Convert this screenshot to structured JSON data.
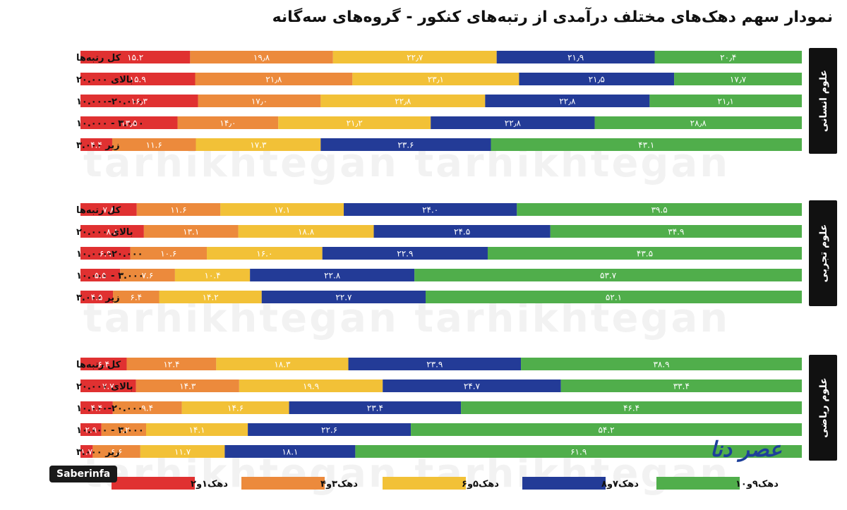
{
  "title": "نمودار سهم دهک‌های مختلف درآمدی از رتبه‌های کنکور - گروه‌های سه‌گانه",
  "watermark": "tarhikhtegan tarhikhtegan",
  "source": "Saberinfa",
  "brand": "عصر دنا",
  "colors": {
    "d1_2": "#e03131",
    "d3_4": "#ec8a3c",
    "d5_6": "#f2c137",
    "d7_8": "#233b97",
    "d9_10": "#50ae4b",
    "group_tab": "#111111"
  },
  "chart_data": {
    "type": "bar",
    "stacked": true,
    "orientation": "horizontal",
    "title": "نمودار سهم دهک‌های مختلف درآمدی از رتبه‌های کنکور - گروه‌های سه‌گانه",
    "xlim": [
      0,
      100
    ],
    "series_names": [
      "دهک۱و۲",
      "دهک۳و۴",
      "دهک۵و۶",
      "دهک۷و۸",
      "دهک۹و۱۰"
    ],
    "series_keys": [
      "d1_2",
      "d3_4",
      "d5_6",
      "d7_8",
      "d9_10"
    ],
    "legend": [
      {
        "key": "d1_2",
        "label": "دهک۱و۲"
      },
      {
        "key": "d3_4",
        "label": "دهک۳و۴"
      },
      {
        "key": "d5_6",
        "label": "دهک۵و۶"
      },
      {
        "key": "d7_8",
        "label": "دهک۷و۸"
      },
      {
        "key": "d9_10",
        "label": "دهک۹و۱۰"
      }
    ],
    "groups": [
      {
        "name": "علوم انسانی",
        "rows": [
          {
            "label": "کل رتبه‌ها",
            "values": [
              15.2,
              19.8,
              22.7,
              21.9,
              20.4
            ],
            "value_labels": [
              "۱۵.۲",
              "۱۹٫۸",
              "۲۲٫۷",
              "۲۱٫۹",
              "۲۰٫۴"
            ]
          },
          {
            "label": "بالای ۲۰.۰۰۰",
            "values": [
              15.9,
              21.8,
              23.1,
              21.5,
              17.7
            ],
            "value_labels": [
              "۱۵.۹",
              "۲۱٫۸",
              "۲۳٫۱",
              "۲۱٫۵",
              "۱۷٫۷"
            ]
          },
          {
            "label": "۱۰.۰۰۰-۲۰.۰۰۰",
            "values": [
              16.3,
              17.0,
              22.8,
              22.8,
              21.1
            ],
            "value_labels": [
              "۱۶٫۳",
              "۱۷٫۰",
              "۲۲٫۸",
              "۲۲٫۸",
              "۲۱٫۱"
            ]
          },
          {
            "label": "۳.۰۰۰ - ۱۰.۰۰۰",
            "values": [
              13.5,
              14.0,
              21.2,
              22.8,
              28.8
            ],
            "value_labels": [
              "۱۳٫۵",
              "۱۴٫۰",
              "۲۱٫۲",
              "۲۲٫۸",
              "۲۸٫۸"
            ]
          },
          {
            "label": "زیر ۳.۰۰۰",
            "values": [
              4.4,
              11.6,
              17.3,
              23.6,
              43.1
            ],
            "value_labels": [
              "۴.۴",
              "۱۱.۶",
              "۱۷.۳",
              "۲۳.۶",
              "۴۳.۱"
            ]
          }
        ]
      },
      {
        "name": "علوم تجربی",
        "rows": [
          {
            "label": "کل رتبه‌ها",
            "values": [
              7.8,
              11.6,
              17.1,
              24.0,
              39.5
            ],
            "value_labels": [
              "۷.۸",
              "۱۱.۶",
              "۱۷.۱",
              "۲۴.۰",
              "۳۹.۵"
            ]
          },
          {
            "label": "بالای ۲۰.۰۰۰",
            "values": [
              8.8,
              13.1,
              18.8,
              24.5,
              34.9
            ],
            "value_labels": [
              "۸.۸",
              "۱۳.۱",
              "۱۸.۸",
              "۲۴.۵",
              "۳۴.۹"
            ]
          },
          {
            "label": "۱۰.۰۰۰-۲۰.۰۰۰",
            "values": [
              6.9,
              10.6,
              16.0,
              22.9,
              43.5
            ],
            "value_labels": [
              "۶.۹",
              "۱۰.۶",
              "۱۶.۰",
              "۲۲.۹",
              "۴۳.۵"
            ]
          },
          {
            "label": "۳.۰۰۰ - ۱۰.۰۰۰",
            "values": [
              5.5,
              7.6,
              10.4,
              22.8,
              53.7
            ],
            "value_labels": [
              "۵.۵",
              "۷.۶",
              "۱۰.۴",
              "۲۲.۸",
              "۵۳.۷"
            ]
          },
          {
            "label": "زیر ۳.۰۰۰",
            "values": [
              4.5,
              6.4,
              14.2,
              22.7,
              52.1
            ],
            "value_labels": [
              "۴.۵",
              "۶.۴",
              "۱۴.۲",
              "۲۲.۷",
              "۵۲.۱"
            ]
          }
        ]
      },
      {
        "name": "علوم ریاضی",
        "rows": [
          {
            "label": "کل رتبه‌ها",
            "values": [
              6.4,
              12.4,
              18.3,
              23.9,
              38.9
            ],
            "value_labels": [
              "۶.۴",
              "۱۲.۴",
              "۱۸.۳",
              "۲۳.۹",
              "۳۸.۹"
            ]
          },
          {
            "label": "بالای ۲۰.۰۰۰",
            "values": [
              7.7,
              14.3,
              19.9,
              24.7,
              33.4
            ],
            "value_labels": [
              "۷.۷",
              "۱۴.۳",
              "۱۹.۹",
              "۲۴.۷",
              "۳۳.۴"
            ]
          },
          {
            "label": "۱۰.۰۰۰-۲۰.۰۰۰",
            "values": [
              4.4,
              9.4,
              14.6,
              23.4,
              46.4
            ],
            "value_labels": [
              "۴.۴",
              "۹.۴",
              "۱۴.۶",
              "۲۳.۴",
              "۴۶.۴"
            ]
          },
          {
            "label": "۳.۰۰۰ - ۱۰.۰۰۰",
            "values": [
              2.9,
              6.2,
              14.1,
              22.6,
              54.2
            ],
            "value_labels": [
              "۲.۹",
              "۶.۲",
              "۱۴.۱",
              "۲۲.۶",
              "۵۴.۲"
            ]
          },
          {
            "label": "زیر ۳.۰۰۰",
            "values": [
              1.7,
              6.6,
              11.7,
              18.1,
              61.9
            ],
            "value_labels": [
              "۱.۷",
              "۶.۶",
              "۱۱.۷",
              "۱۸.۱",
              "۶۱.۹"
            ]
          }
        ]
      }
    ]
  }
}
